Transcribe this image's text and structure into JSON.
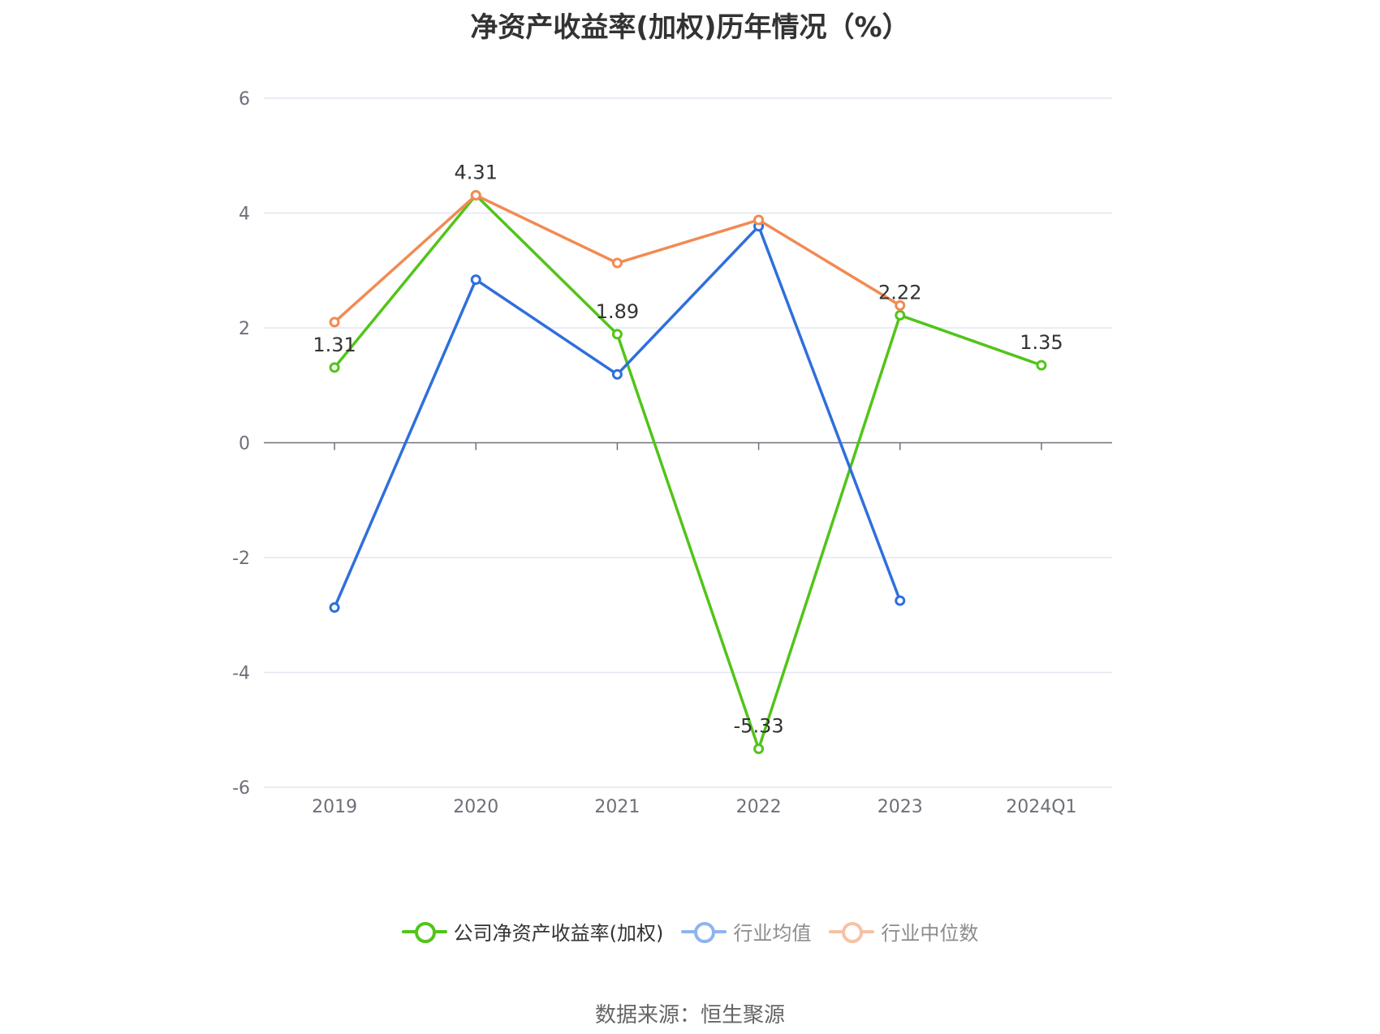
{
  "title": "净资产收益率(加权)历年情况（%）",
  "source": "数据来源：恒生聚源",
  "chart_data": {
    "type": "line",
    "categories": [
      "2019",
      "2020",
      "2021",
      "2022",
      "2023",
      "2024Q1"
    ],
    "ylim": [
      -6,
      6
    ],
    "yticks": [
      6,
      4,
      2,
      0,
      -2,
      -4,
      -6
    ],
    "grid": true,
    "legend_position": "bottom-center",
    "series": [
      {
        "name": "公司净资产收益率(加权)",
        "color": "#52c41a",
        "values": [
          1.31,
          4.31,
          1.89,
          -5.33,
          2.22,
          1.35
        ],
        "labels": [
          "1.31",
          "4.31",
          "1.89",
          "-5.33",
          "2.22",
          "1.35"
        ]
      },
      {
        "name": "行业均值",
        "color": "#2f6fdc",
        "legend_color": "#8fb4ec",
        "values": [
          -2.87,
          2.84,
          1.19,
          3.77,
          -2.75,
          null
        ]
      },
      {
        "name": "行业中位数",
        "color": "#f28a52",
        "legend_color": "#f8c1a4",
        "values": [
          2.1,
          4.31,
          3.13,
          3.88,
          2.39,
          null
        ]
      }
    ]
  }
}
